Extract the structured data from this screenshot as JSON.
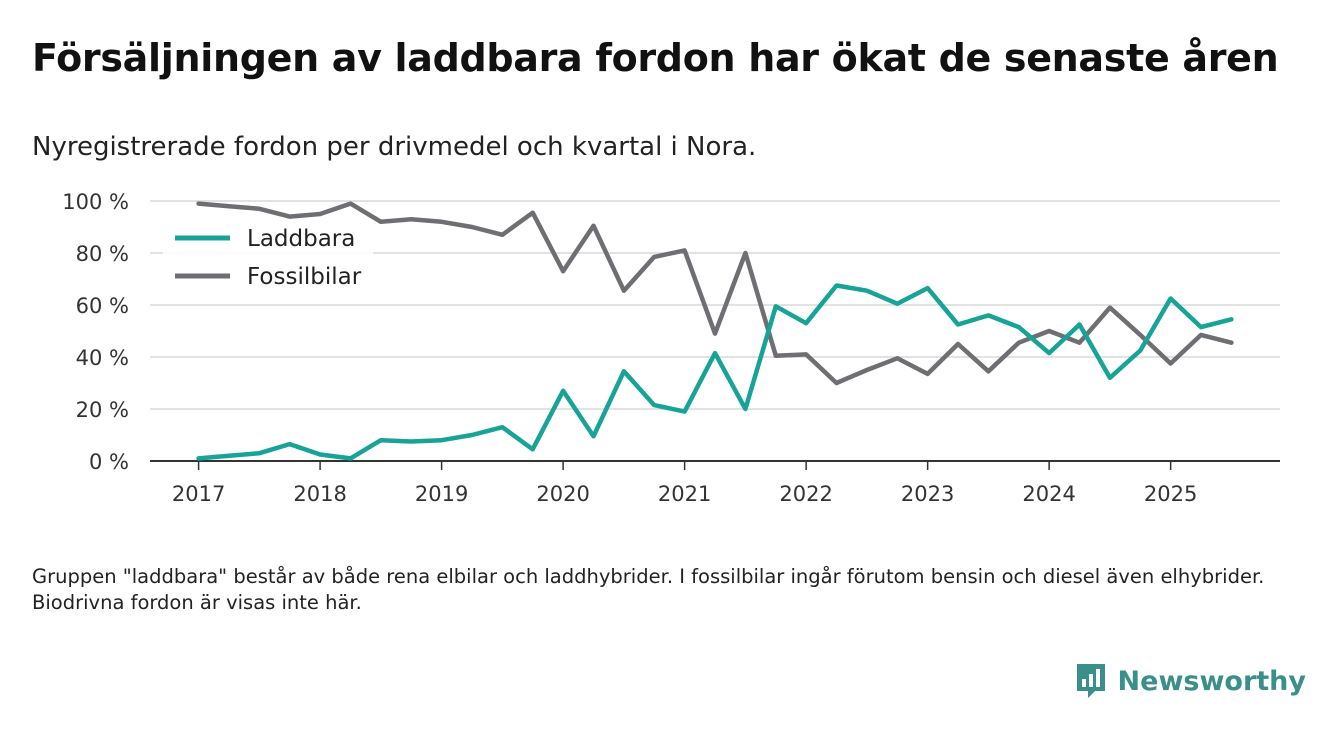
{
  "header": {
    "title": "Försäljningen av laddbara fordon har ökat de senaste åren",
    "subtitle": "Nyregistrerade fordon per drivmedel och kvartal i Nora."
  },
  "footnote": "Gruppen \"laddbara\" består av både rena elbilar och laddhybrider. I fossilbilar ingår förutom bensin och diesel även elhybrider. Biodrivna fordon är visas inte här.",
  "brand": {
    "name": "Newsworthy",
    "icon": "newsworthy-logo-icon",
    "color": "#3a8f8a"
  },
  "chart_data": {
    "type": "line",
    "title": "Försäljningen av laddbara fordon har ökat de senaste åren",
    "subtitle": "Nyregistrerade fordon per drivmedel och kvartal i Nora.",
    "xlabel": "",
    "ylabel": "",
    "xlim": [
      2016.6,
      2025.9
    ],
    "ylim": [
      0,
      100
    ],
    "x_ticks": [
      2017,
      2018,
      2019,
      2020,
      2021,
      2022,
      2023,
      2024,
      2025
    ],
    "x_tick_labels": [
      "2017",
      "2018",
      "2019",
      "2020",
      "2021",
      "2022",
      "2023",
      "2024",
      "2025"
    ],
    "y_ticks": [
      0,
      20,
      40,
      60,
      80,
      100
    ],
    "y_tick_labels": [
      "0 %",
      "20 %",
      "40 %",
      "60 %",
      "80 %",
      "100 %"
    ],
    "grid": true,
    "legend_position": "top-left",
    "x": [
      2017.0,
      2017.25,
      2017.5,
      2017.75,
      2018.0,
      2018.25,
      2018.5,
      2018.75,
      2019.0,
      2019.25,
      2019.5,
      2019.75,
      2020.0,
      2020.25,
      2020.5,
      2020.75,
      2021.0,
      2021.25,
      2021.5,
      2021.75,
      2022.0,
      2022.25,
      2022.5,
      2022.75,
      2023.0,
      2023.25,
      2023.5,
      2023.75,
      2024.0,
      2024.25,
      2024.5,
      2024.75,
      2025.0,
      2025.25,
      2025.5
    ],
    "series": [
      {
        "name": "Laddbara",
        "color": "#17a398",
        "values": [
          1,
          2,
          3,
          6.5,
          2.5,
          1,
          8,
          7.5,
          8,
          10,
          13,
          4.5,
          27,
          9.5,
          34.5,
          21.5,
          19,
          41.5,
          20,
          59.5,
          53,
          67.5,
          65.5,
          60.5,
          66.5,
          52.5,
          56,
          51.5,
          41.5,
          52.5,
          32,
          42.5,
          62.5,
          51.5,
          54.5
        ]
      },
      {
        "name": "Fossilbilar",
        "color": "#6f6e73",
        "values": [
          99,
          98,
          97,
          94,
          95,
          99,
          92,
          93,
          92,
          90,
          87,
          95.5,
          73,
          90.5,
          65.5,
          78.5,
          81,
          49,
          80,
          40.5,
          41,
          30,
          35,
          39.5,
          33.5,
          45,
          34.5,
          45.5,
          50,
          45.5,
          59,
          48.5,
          37.5,
          48.5,
          45.5
        ]
      }
    ]
  }
}
